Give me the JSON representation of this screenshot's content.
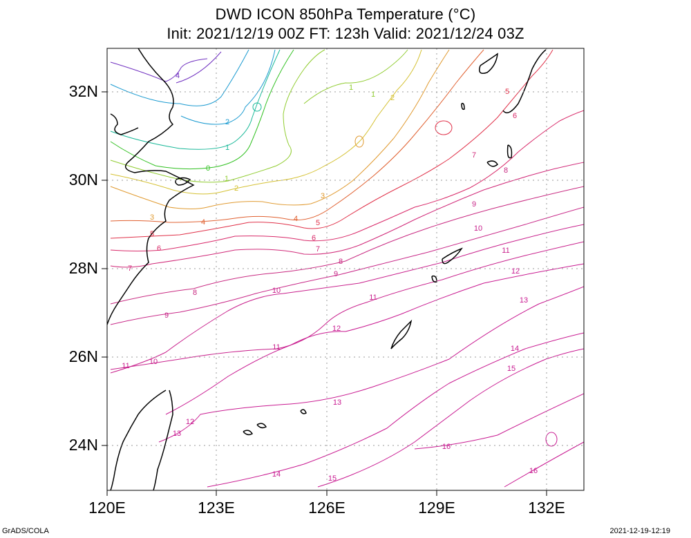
{
  "title": {
    "line1": "DWD ICON 850hPa Temperature (°C)",
    "line2": "Init: 2021/12/19 00Z  FT: 123h  Valid: 2021/12/24 03Z"
  },
  "axes": {
    "lat_labels": [
      {
        "id": "32n",
        "text": "32N",
        "value": 32
      },
      {
        "id": "30n",
        "text": "30N",
        "value": 30
      },
      {
        "id": "28n",
        "text": "28N",
        "value": 28
      },
      {
        "id": "26n",
        "text": "26N",
        "value": 26
      },
      {
        "id": "24n",
        "text": "24N",
        "value": 24
      }
    ],
    "lon_labels": [
      {
        "id": "120e",
        "text": "120E",
        "value": 120
      },
      {
        "id": "123e",
        "text": "123E",
        "value": 123
      },
      {
        "id": "126e",
        "text": "126E",
        "value": 126
      },
      {
        "id": "129e",
        "text": "129E",
        "value": 129
      },
      {
        "id": "132e",
        "text": "132E",
        "value": 132
      }
    ],
    "lon_range": [
      120,
      133
    ],
    "lat_range": [
      23,
      33
    ]
  },
  "contour_levels": [
    -4,
    -2,
    -1,
    0,
    1,
    2,
    3,
    4,
    5,
    6,
    7,
    8,
    9,
    10,
    11,
    12,
    13,
    14,
    15,
    16
  ],
  "contour_labels": [
    {
      "text": "4",
      "color": "#7030c0"
    },
    {
      "text": "2",
      "color": "#1a9ad0"
    },
    {
      "text": "1",
      "color": "#18b898"
    },
    {
      "text": "0",
      "color": "#30c020"
    },
    {
      "text": "1",
      "color": "#90cc30"
    },
    {
      "text": "2",
      "color": "#d4c030"
    },
    {
      "text": "3",
      "color": "#e09a30"
    },
    {
      "text": "3",
      "color": "#e09a30"
    },
    {
      "text": "4",
      "color": "#e06030"
    },
    {
      "text": "4",
      "color": "#e06030"
    },
    {
      "text": "5",
      "color": "#e03048"
    },
    {
      "text": "5",
      "color": "#e03048"
    },
    {
      "text": "5",
      "color": "#e03048"
    },
    {
      "text": "6",
      "color": "#d82868"
    },
    {
      "text": "6",
      "color": "#d82868"
    },
    {
      "text": "6",
      "color": "#d82868"
    },
    {
      "text": "7",
      "color": "#d02878"
    },
    {
      "text": "7",
      "color": "#d02878"
    },
    {
      "text": "7",
      "color": "#d02878"
    },
    {
      "text": "8",
      "color": "#c82880"
    },
    {
      "text": "8",
      "color": "#c82880"
    },
    {
      "text": "8",
      "color": "#c82880"
    },
    {
      "text": "9",
      "color": "#c82888"
    },
    {
      "text": "9",
      "color": "#c82888"
    },
    {
      "text": "9",
      "color": "#c82888"
    },
    {
      "text": "10",
      "color": "#c8208c"
    },
    {
      "text": "10",
      "color": "#c8208c"
    },
    {
      "text": "10",
      "color": "#c8208c"
    },
    {
      "text": "11",
      "color": "#c8208c"
    },
    {
      "text": "11",
      "color": "#c8208c"
    },
    {
      "text": "11",
      "color": "#c8208c"
    },
    {
      "text": "11",
      "color": "#c8208c"
    },
    {
      "text": "12",
      "color": "#c81890"
    },
    {
      "text": "12",
      "color": "#c81890"
    },
    {
      "text": "12",
      "color": "#c81890"
    },
    {
      "text": "13",
      "color": "#c81890"
    },
    {
      "text": "13",
      "color": "#c81890"
    },
    {
      "text": "13",
      "color": "#c81890"
    },
    {
      "text": "14",
      "color": "#c81890"
    },
    {
      "text": "14",
      "color": "#c81890"
    },
    {
      "text": "15",
      "color": "#c81890"
    },
    {
      "text": "15",
      "color": "#c81890"
    },
    {
      "text": "16",
      "color": "#c81890"
    },
    {
      "text": "16",
      "color": "#c81890"
    },
    {
      "text": "1",
      "color": "#90cc30"
    },
    {
      "text": "1",
      "color": "#90cc30"
    },
    {
      "text": "2",
      "color": "#d4c030"
    }
  ],
  "footer": {
    "left": "GrADS/COLA",
    "right": "2021-12-19-12:19"
  }
}
